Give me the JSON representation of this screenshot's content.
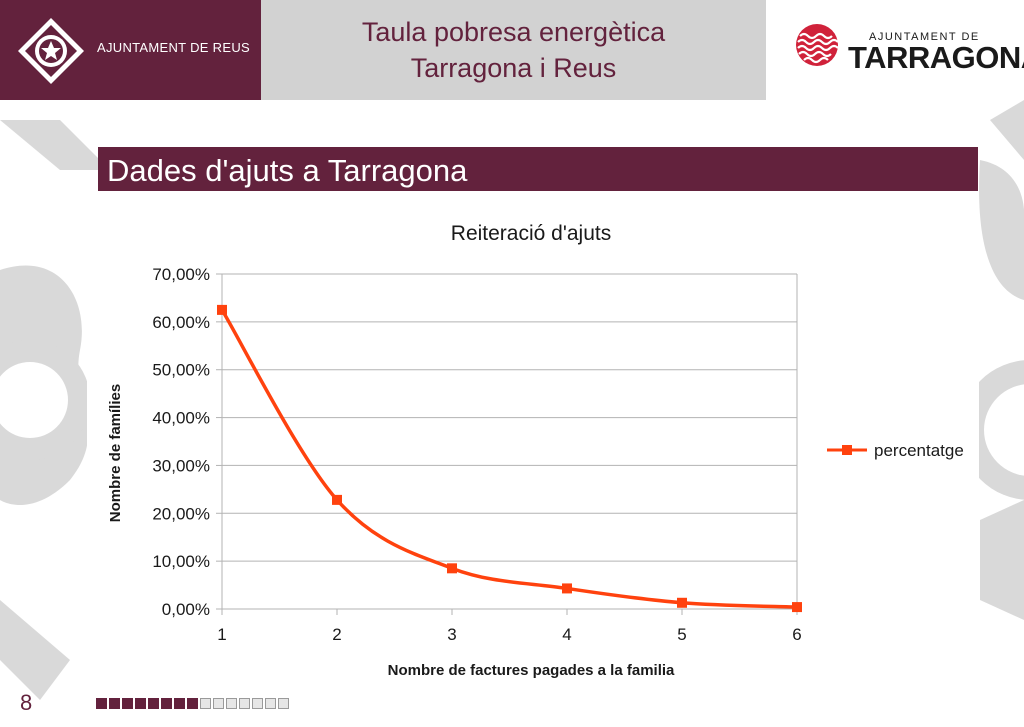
{
  "header": {
    "reus_label": "AJUNTAMENT DE REUS",
    "title_line1": "Taula pobresa energètica",
    "title_line2": "Tarragona i Reus",
    "tarragona_small": "AJUNTAMENT DE",
    "tarragona_big": "TARRAGONA"
  },
  "section": {
    "title": "Dades d'ajuts a Tarragona"
  },
  "chart_data": {
    "type": "line",
    "title": "Reiteració d'ajuts",
    "xlabel": "Nombre de factures pagades a la familia",
    "ylabel": "Nombre de famílies",
    "x": [
      1,
      2,
      3,
      4,
      5,
      6
    ],
    "ylim": [
      0,
      70
    ],
    "yticks": [
      0,
      10,
      20,
      30,
      40,
      50,
      60,
      70
    ],
    "ytick_labels": [
      "0,00%",
      "10,00%",
      "20,00%",
      "30,00%",
      "40,00%",
      "50,00%",
      "60,00%",
      "70,00%"
    ],
    "xtick_labels": [
      "1",
      "2",
      "3",
      "4",
      "5",
      "6"
    ],
    "grid": "horizontal",
    "legend_position": "right",
    "smooth": true,
    "series": [
      {
        "name": "percentatge",
        "color": "#ff420e",
        "marker": "square",
        "values": [
          62.5,
          22.8,
          8.5,
          4.3,
          1.3,
          0.4
        ]
      }
    ]
  },
  "footer": {
    "page_number": "8",
    "progress": {
      "current": 8,
      "total": 15
    }
  },
  "colors": {
    "brand": "#63223d",
    "header_gray": "#d2d2d2",
    "series": "#ff420e"
  }
}
